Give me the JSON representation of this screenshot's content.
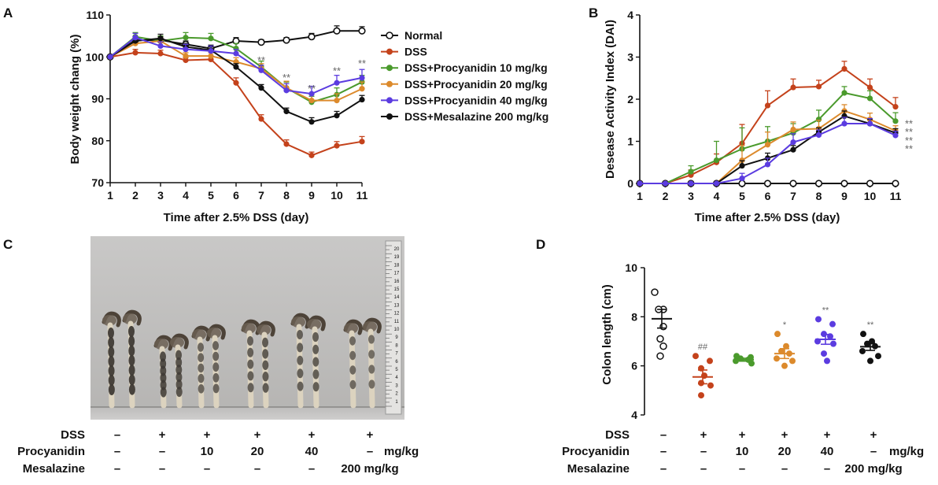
{
  "panels": {
    "a": "A",
    "b": "B",
    "c": "C",
    "d": "D"
  },
  "colors": {
    "normal": "#111111",
    "dss": "#c4421b",
    "p10": "#4a9a2c",
    "p20": "#dc8a2c",
    "p40": "#5b3ce0",
    "mesalazine": "#111111",
    "sig": "#777777"
  },
  "chart_data": [
    {
      "id": "A",
      "type": "line",
      "title": "",
      "xlabel": "Time after 2.5% DSS (day)",
      "ylabel": "Body weight chang (%)",
      "x": [
        1,
        2,
        3,
        4,
        5,
        6,
        7,
        8,
        9,
        10,
        11
      ],
      "xlim": [
        1,
        11
      ],
      "ylim": [
        70,
        110
      ],
      "yticks": [
        70,
        80,
        90,
        100,
        110
      ],
      "legend_position": "right",
      "series": [
        {
          "key": "normal",
          "name": "Normal",
          "marker": "open-circle",
          "values": [
            100,
            104,
            104,
            103,
            102,
            103.8,
            103.5,
            104,
            104.8,
            106.2,
            106.2
          ],
          "err": [
            0,
            0.8,
            0.8,
            0.8,
            0.8,
            0.8,
            0.6,
            0.6,
            0.8,
            1.2,
            1
          ]
        },
        {
          "key": "dss",
          "name": "DSS",
          "marker": "dot",
          "values": [
            100,
            101,
            100.8,
            99.2,
            99.4,
            93.8,
            85.2,
            79.2,
            76.5,
            78.8,
            79.8
          ],
          "err": [
            0,
            0.8,
            0.8,
            0.6,
            0.8,
            1.2,
            1,
            1,
            0.8,
            1,
            1.2
          ]
        },
        {
          "key": "p10",
          "name": "DSS+Procyanidin 10 mg/kg",
          "marker": "dot",
          "values": [
            100,
            104.8,
            103.8,
            104.6,
            104.4,
            102,
            97.6,
            92.6,
            89.2,
            91,
            94
          ],
          "err": [
            0,
            1,
            1.2,
            1.2,
            1.2,
            1.2,
            1.4,
            1.4,
            1.4,
            1.6,
            1.6
          ]
        },
        {
          "key": "p20",
          "name": "DSS+Procyanidin 20 mg/kg",
          "marker": "dot",
          "values": [
            100,
            103.2,
            103.8,
            100.2,
            100.2,
            98.8,
            97.2,
            92.6,
            89.6,
            89.6,
            92.4
          ],
          "err": [
            0,
            1,
            0.8,
            0.8,
            0.8,
            1,
            1.2,
            1.6,
            1.4,
            1.6,
            1.6
          ]
        },
        {
          "key": "p40",
          "name": "DSS+Procyanidin 40 mg/kg",
          "marker": "dot",
          "values": [
            100,
            104.6,
            102.6,
            101.8,
            101.4,
            100.8,
            96.8,
            92,
            91.2,
            93.8,
            95
          ],
          "err": [
            0,
            1,
            1,
            1.2,
            1.2,
            1,
            1.2,
            1.6,
            1.8,
            1.8,
            2
          ]
        },
        {
          "key": "mesalazine",
          "name": "DSS+Mesalazine 200 mg/kg",
          "marker": "dot",
          "values": [
            100,
            103.8,
            104.4,
            102.4,
            101.6,
            97.6,
            92.6,
            87,
            84.5,
            86,
            89.8
          ],
          "err": [
            0,
            1,
            1,
            0.8,
            0.8,
            0.8,
            0.8,
            0.8,
            1,
            1,
            1
          ]
        }
      ],
      "annotations": [
        {
          "x": 7,
          "y": 98.4,
          "text": "**"
        },
        {
          "x": 8,
          "y": 94.2,
          "text": "**"
        },
        {
          "x": 9,
          "y": 91.6,
          "text": "**"
        },
        {
          "x": 10,
          "y": 95.8,
          "text": "**"
        },
        {
          "x": 11,
          "y": 97.6,
          "text": "**"
        }
      ]
    },
    {
      "id": "B",
      "type": "line",
      "title": "",
      "xlabel": "Time after 2.5% DSS (day)",
      "ylabel": "Desease Activity Index (DAI)",
      "x": [
        1,
        2,
        3,
        4,
        5,
        6,
        7,
        8,
        9,
        10,
        11
      ],
      "xlim": [
        1,
        11
      ],
      "ylim": [
        0,
        4
      ],
      "yticks": [
        0,
        1,
        2,
        3,
        4
      ],
      "series": [
        {
          "key": "normal",
          "name": "Normal",
          "marker": "open-circle",
          "values": [
            0,
            0,
            0,
            0,
            0,
            0,
            0,
            0,
            0,
            0,
            0
          ],
          "err": [
            0,
            0,
            0,
            0,
            0,
            0,
            0,
            0,
            0,
            0,
            0
          ]
        },
        {
          "key": "dss",
          "name": "DSS",
          "marker": "dot",
          "values": [
            0,
            0,
            0.2,
            0.5,
            0.95,
            1.85,
            2.28,
            2.3,
            2.72,
            2.28,
            1.82
          ],
          "err": [
            0,
            0,
            0.12,
            0.2,
            0.45,
            0.35,
            0.2,
            0.15,
            0.18,
            0.2,
            0.22
          ]
        },
        {
          "key": "p10",
          "name": "DSS+Procyanidin 10 mg/kg",
          "marker": "dot",
          "values": [
            0,
            0,
            0.28,
            0.55,
            0.82,
            1,
            1.2,
            1.52,
            2.15,
            2.02,
            1.48
          ],
          "err": [
            0,
            0,
            0.14,
            0.45,
            0.5,
            0.35,
            0.22,
            0.22,
            0.15,
            0.18,
            0.2
          ]
        },
        {
          "key": "p20",
          "name": "DSS+Procyanidin 20 mg/kg",
          "marker": "dot",
          "values": [
            0,
            0,
            0,
            0,
            0.55,
            0.92,
            1.28,
            1.3,
            1.72,
            1.52,
            1.25
          ],
          "err": [
            0,
            0,
            0,
            0,
            0.35,
            0.3,
            0.18,
            0.2,
            0.15,
            0.15,
            0.12
          ]
        },
        {
          "key": "p40",
          "name": "DSS+Procyanidin 40 mg/kg",
          "marker": "dot",
          "values": [
            0,
            0,
            0,
            0,
            0.12,
            0.45,
            0.98,
            1.15,
            1.42,
            1.42,
            1.14
          ],
          "err": [
            0,
            0,
            0,
            0,
            0.12,
            0.15,
            0.2,
            0.12,
            0.15,
            0.12,
            0.1
          ]
        },
        {
          "key": "mesalazine",
          "name": "DSS+Mesalazine 200 mg/kg",
          "marker": "dot",
          "values": [
            0,
            0,
            0,
            0,
            0.42,
            0.6,
            0.8,
            1.22,
            1.6,
            1.42,
            1.2
          ],
          "err": [
            0,
            0,
            0,
            0,
            0.12,
            0.12,
            0.1,
            0.1,
            0.12,
            0.1,
            0.1
          ]
        }
      ],
      "annotations": [
        {
          "x": 11,
          "y": 1.45,
          "text": "**"
        },
        {
          "x": 11,
          "y": 1.25,
          "text": "**"
        },
        {
          "x": 11,
          "y": 1.05,
          "text": "**"
        },
        {
          "x": 11,
          "y": 0.85,
          "text": "**"
        }
      ]
    },
    {
      "id": "D",
      "type": "scatter",
      "title": "",
      "xlabel": "",
      "ylabel": "Colon length (cm)",
      "ylim": [
        4,
        10
      ],
      "yticks": [
        4,
        6,
        8,
        10
      ],
      "groups": [
        {
          "key": "normal",
          "marker": "open-circle",
          "points": [
            9.0,
            8.3,
            8.3,
            7.6,
            7.1,
            6.8,
            6.4
          ],
          "mean": 7.92,
          "sem": 0.38
        },
        {
          "key": "dss",
          "marker": "dot",
          "points": [
            6.4,
            6.2,
            5.9,
            5.6,
            5.3,
            5.2,
            4.8
          ],
          "mean": 5.55,
          "sem": 0.28,
          "annotation": "##"
        },
        {
          "key": "p10",
          "marker": "dot",
          "points": [
            6.4,
            6.35,
            6.3,
            6.25,
            6.2,
            6.1
          ],
          "mean": 6.25,
          "sem": 0.06
        },
        {
          "key": "p20",
          "marker": "dot",
          "points": [
            7.3,
            6.8,
            6.6,
            6.5,
            6.3,
            6.2,
            6.0
          ],
          "mean": 6.5,
          "sem": 0.2,
          "annotation": "*"
        },
        {
          "key": "p40",
          "marker": "dot",
          "points": [
            7.9,
            7.7,
            7.3,
            7.2,
            7.0,
            6.9,
            6.5,
            6.2
          ],
          "mean": 7.08,
          "sem": 0.2,
          "annotation": "**"
        },
        {
          "key": "mesalazine",
          "marker": "dot",
          "points": [
            7.3,
            7.0,
            6.9,
            6.8,
            6.6,
            6.4,
            6.2
          ],
          "mean": 6.78,
          "sem": 0.15,
          "annotation": "**"
        }
      ]
    }
  ],
  "conditions": {
    "row_labels": {
      "dss": "DSS",
      "procyanidin": "Procyanidin",
      "mesalazine": "Mesalazine"
    },
    "dss": [
      "–",
      "+",
      "+",
      "+",
      "+",
      "+"
    ],
    "procyanidin": [
      "–",
      "–",
      "10",
      "20",
      "40",
      "–"
    ],
    "procyanidin_unit": "mg/kg",
    "mesalazine": [
      "–",
      "–",
      "–",
      "–",
      "–",
      "200 mg/kg"
    ]
  },
  "photo": {
    "ruler_labels": [
      "20",
      "19",
      "18",
      "17",
      "16",
      "15",
      "14",
      "13",
      "12",
      "11",
      "10",
      "9",
      "8",
      "7",
      "6",
      "5",
      "4",
      "3",
      "2",
      "1"
    ]
  }
}
